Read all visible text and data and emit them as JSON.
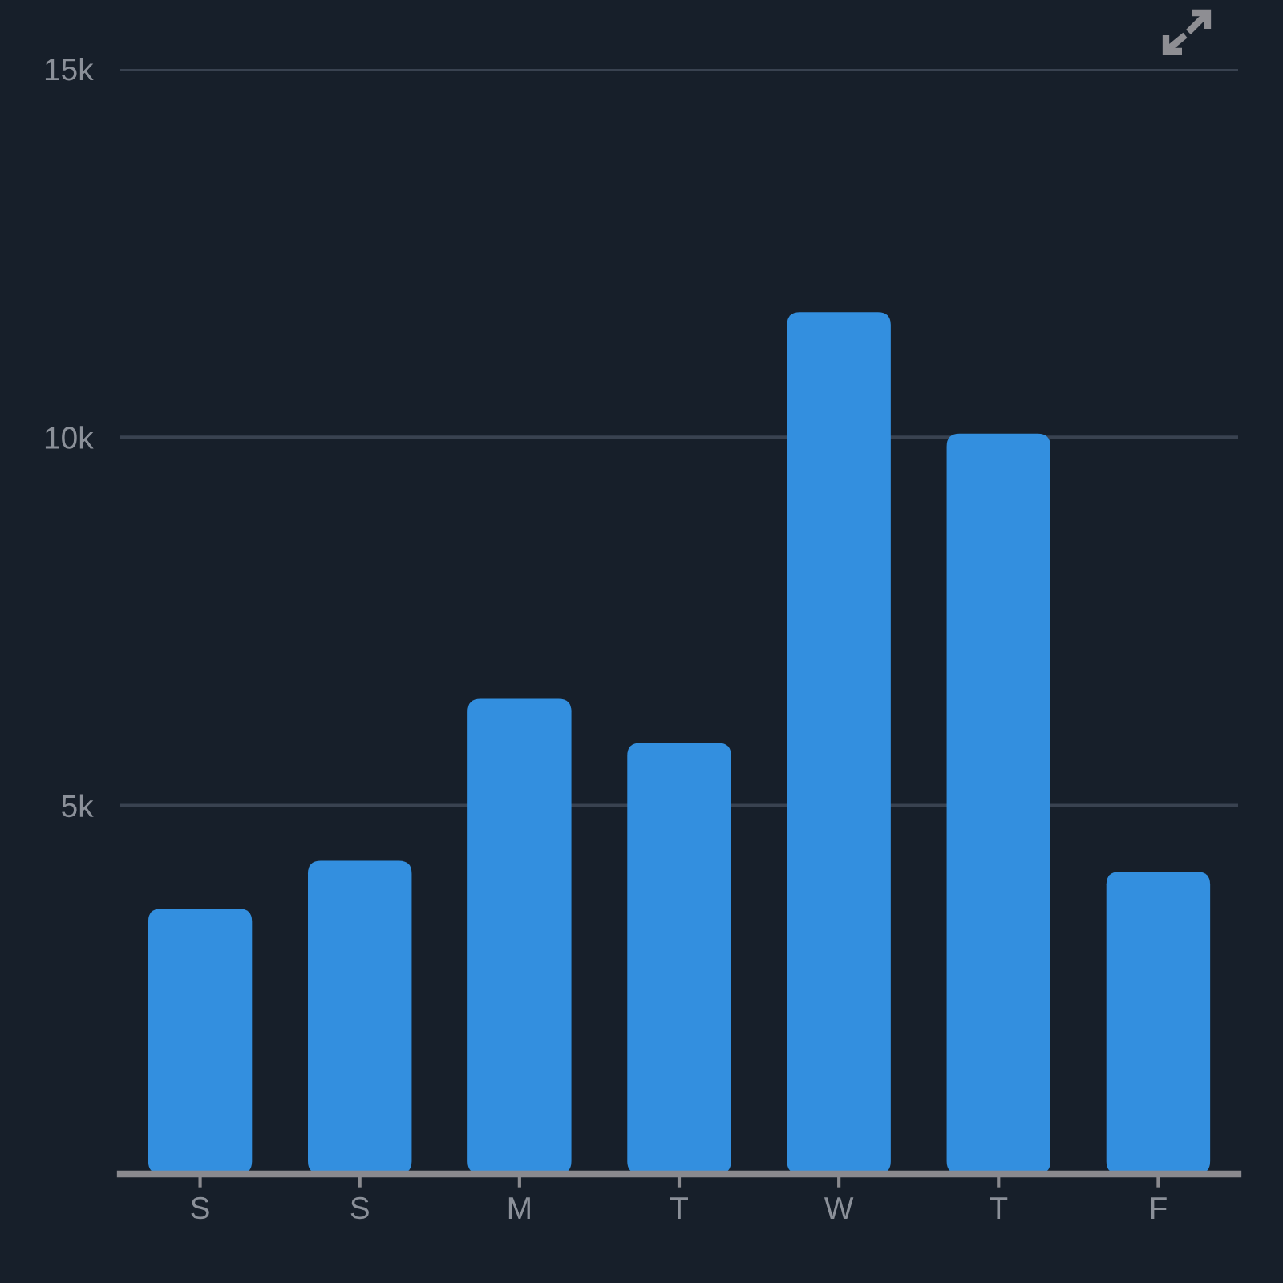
{
  "chart_data": {
    "type": "bar",
    "categories": [
      "S",
      "S",
      "M",
      "T",
      "W",
      "T",
      "F"
    ],
    "values": [
      3600,
      4250,
      6450,
      5850,
      11700,
      10050,
      4100
    ],
    "color": "#338fdf",
    "ylim": [
      0,
      15000
    ],
    "yticks": [
      {
        "value": 5000,
        "label": "5k"
      },
      {
        "value": 10000,
        "label": "10k"
      },
      {
        "value": 15000,
        "label": "15k"
      }
    ],
    "grid": "y"
  }
}
